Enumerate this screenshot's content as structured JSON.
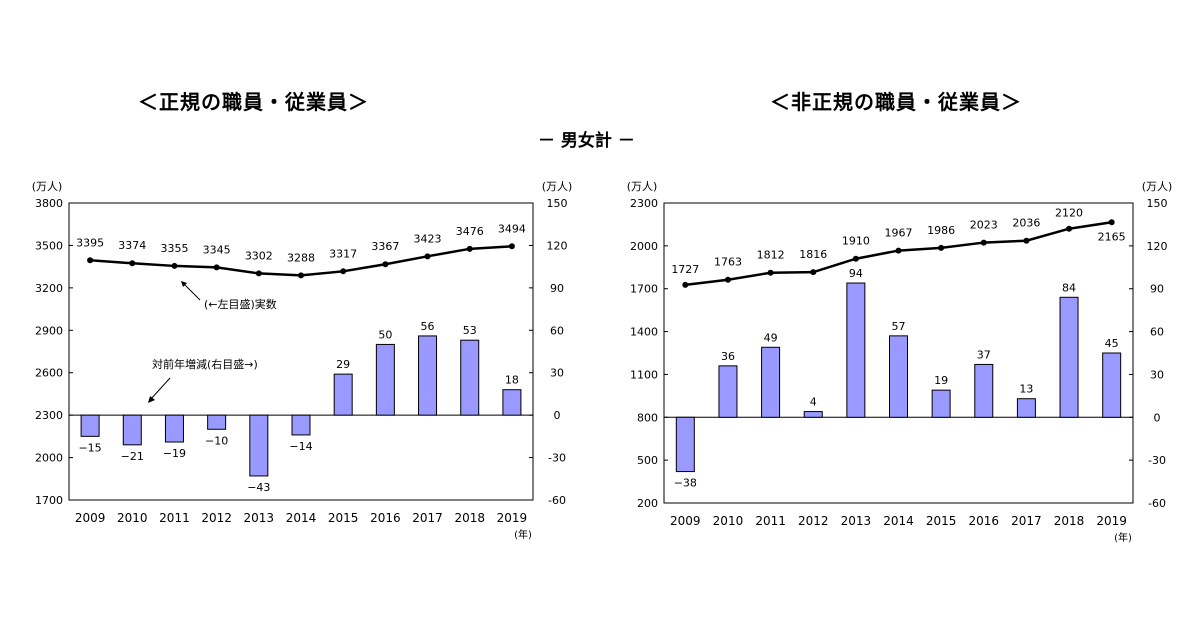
{
  "titles": {
    "left": "＜正規の職員・従業員＞",
    "right": "＜非正規の職員・従業員＞",
    "subtitle": "－ 男女計 －"
  },
  "colors": {
    "bar": "#9999ff",
    "line": "#000000",
    "axis": "#000000"
  },
  "chart_data": [
    {
      "type": "bar+line",
      "title": "＜正規の職員・従業員＞",
      "categories": [
        "2009",
        "2010",
        "2011",
        "2012",
        "2013",
        "2014",
        "2015",
        "2016",
        "2017",
        "2018",
        "2019"
      ],
      "x_unit": "(年)",
      "left_unit": "(万人)",
      "right_unit": "(万人)",
      "left_ticks": [
        1700,
        2000,
        2300,
        2600,
        2900,
        3200,
        3500,
        3800
      ],
      "right_ticks": [
        -60,
        -30,
        0,
        30,
        60,
        90,
        120,
        150
      ],
      "left_ylim": [
        1700,
        3800
      ],
      "right_ylim": [
        -60,
        150
      ],
      "line": {
        "name": "(←左目盛)実数",
        "values": [
          3395,
          3374,
          3355,
          3345,
          3302,
          3288,
          3317,
          3367,
          3423,
          3476,
          3494
        ]
      },
      "bars": {
        "name": "対前年増減(右目盛→)",
        "values": [
          -15,
          -21,
          -19,
          -10,
          -43,
          -14,
          29,
          50,
          56,
          53,
          18
        ]
      },
      "annotations": {
        "line_label": "(←左目盛)実数",
        "bar_label": "対前年増減(右目盛→)"
      }
    },
    {
      "type": "bar+line",
      "title": "＜非正規の職員・従業員＞",
      "categories": [
        "2009",
        "2010",
        "2011",
        "2012",
        "2013",
        "2014",
        "2015",
        "2016",
        "2017",
        "2018",
        "2019"
      ],
      "x_unit": "(年)",
      "left_unit": "(万人)",
      "right_unit": "(万人)",
      "left_ticks": [
        200,
        500,
        800,
        1100,
        1400,
        1700,
        2000,
        2300
      ],
      "right_ticks": [
        -60,
        -30,
        0,
        30,
        60,
        90,
        120,
        150
      ],
      "left_ylim": [
        200,
        2300
      ],
      "right_ylim": [
        -60,
        150
      ],
      "line": {
        "name": "",
        "values": [
          1727,
          1763,
          1812,
          1816,
          1910,
          1967,
          1986,
          2023,
          2036,
          2120,
          2165
        ]
      },
      "bars": {
        "name": "",
        "values": [
          -38,
          36,
          49,
          4,
          94,
          57,
          19,
          37,
          13,
          84,
          45
        ]
      },
      "annotations": {}
    }
  ]
}
